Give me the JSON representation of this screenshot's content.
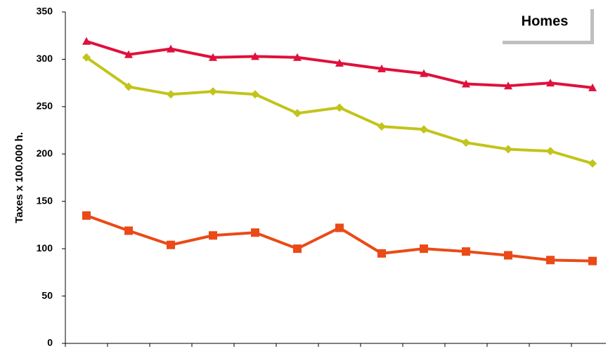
{
  "chart_data": {
    "type": "line",
    "title": "Homes",
    "y_label": "Taxes x 100.000 h.",
    "categories": [
      null,
      null,
      null,
      null,
      null,
      null,
      null,
      null,
      null,
      null,
      null,
      null,
      null
    ],
    "ylim": [
      0,
      350
    ],
    "yticks": [
      0,
      50,
      100,
      150,
      200,
      250,
      300,
      350
    ],
    "grid": false,
    "series": [
      {
        "color": "#e0103c",
        "marker": "triangle",
        "values": [
          319,
          305,
          311,
          302,
          303,
          302,
          296,
          290,
          285,
          274,
          272,
          275,
          270
        ]
      },
      {
        "color": "#c2c41a",
        "marker": "diamond",
        "values": [
          302,
          271,
          263,
          266,
          263,
          243,
          249,
          229,
          226,
          212,
          205,
          203,
          190
        ]
      },
      {
        "color": "#ea4a17",
        "marker": "square",
        "values": [
          135,
          119,
          104,
          114,
          117,
          100,
          122,
          95,
          100,
          97,
          93,
          88,
          87
        ]
      }
    ]
  }
}
